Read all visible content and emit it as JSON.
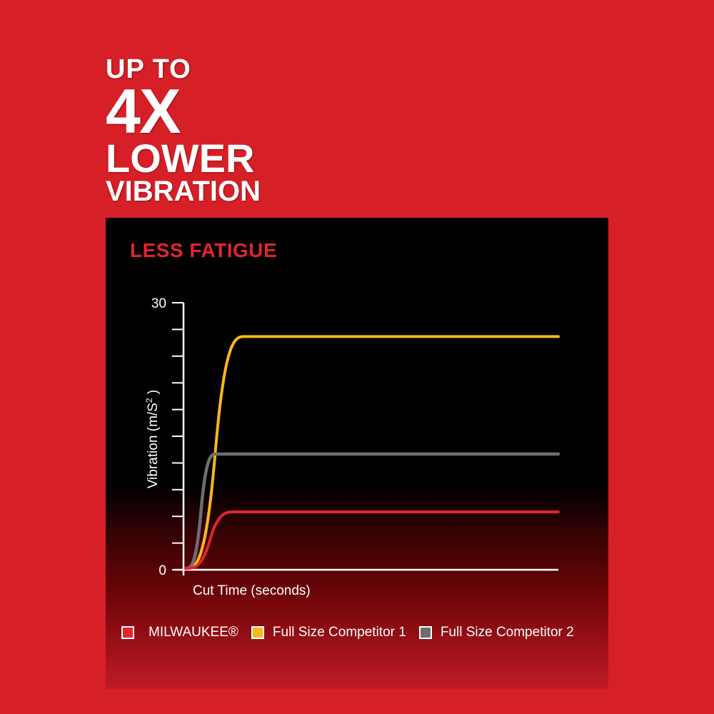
{
  "headline": {
    "line1": "UP TO",
    "line2": "4X",
    "line3": "LOWER",
    "line4": "VIBRATION"
  },
  "colors": {
    "background": "#d71f27",
    "milwaukee": "#e0252d",
    "competitor1": "#f7b81c",
    "competitor2": "#6d6e70"
  },
  "chart_data": {
    "type": "line",
    "title": "LESS FATIGUE",
    "xlabel": "Cut Time (seconds)",
    "ylabel": "Vibration (m/S",
    "ylabel_sup": "2",
    "ylabel_end": " )",
    "ylim": [
      0,
      30
    ],
    "y_ticks": [
      0,
      3,
      6,
      9,
      12,
      15,
      18,
      21,
      24,
      27,
      30
    ],
    "y_tick_labels": [
      "0",
      "30"
    ],
    "grid": false,
    "legend_placement": "bottom",
    "series": [
      {
        "name": "MILWAUKEE®",
        "plateau": 6.5,
        "color": "#e0252d"
      },
      {
        "name": "Full Size Competitor 1",
        "plateau": 26.2,
        "color": "#f7b81c"
      },
      {
        "name": "Full Size Competitor 2",
        "plateau": 13.0,
        "color": "#6d6e70"
      }
    ]
  }
}
